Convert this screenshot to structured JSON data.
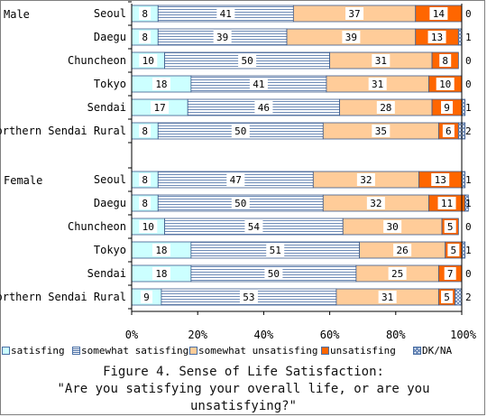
{
  "chart_data": {
    "type": "bar",
    "stacked": "percent",
    "orientation": "horizontal",
    "groups": [
      {
        "label": "Male",
        "categories": [
          "Seoul",
          "Daegu",
          "Chuncheon",
          "Tokyo",
          "Sendai",
          "Northern Sendai Rural"
        ],
        "series": [
          {
            "name": "satisfing",
            "values": [
              8,
              8,
              10,
              18,
              17,
              8
            ]
          },
          {
            "name": "somewhat satisfing",
            "values": [
              41,
              39,
              50,
              41,
              46,
              50
            ]
          },
          {
            "name": "somewhat unsatisfing",
            "values": [
              37,
              39,
              31,
              31,
              28,
              35
            ]
          },
          {
            "name": "unsatisfing",
            "values": [
              14,
              13,
              8,
              10,
              9,
              6
            ]
          },
          {
            "name": "DK/NA",
            "values": [
              0,
              1,
              0,
              0,
              1,
              2
            ]
          }
        ]
      },
      {
        "label": "Female",
        "categories": [
          "Seoul",
          "Daegu",
          "Chuncheon",
          "Tokyo",
          "Sendai",
          "Northern Sendai Rural"
        ],
        "series": [
          {
            "name": "satisfing",
            "values": [
              8,
              8,
              10,
              18,
              18,
              9
            ]
          },
          {
            "name": "somewhat satisfing",
            "values": [
              47,
              50,
              54,
              51,
              50,
              53
            ]
          },
          {
            "name": "somewhat unsatisfing",
            "values": [
              32,
              32,
              30,
              26,
              25,
              31
            ]
          },
          {
            "name": "unsatisfing",
            "values": [
              13,
              11,
              5,
              5,
              7,
              5
            ]
          },
          {
            "name": "DK/NA",
            "values": [
              1,
              1,
              0,
              1,
              0,
              2
            ]
          }
        ]
      }
    ],
    "xticks": [
      "0%",
      "20%",
      "40%",
      "60%",
      "80%",
      "100%"
    ],
    "xlim": [
      0,
      100
    ],
    "grid": false,
    "legend_position": "bottom",
    "colors": {
      "satisfing": "#ccffff",
      "somewhat satisfing": "#ffffff",
      "somewhat unsatisfing": "#ffcc99",
      "unsatisfing": "#ff6600",
      "DK/NA": "#dde8ff"
    }
  },
  "caption": {
    "line1": "Figure 4. Sense of Life Satisfaction:",
    "line2": "\"Are you satisfying your overall life, or are you",
    "line3": "unsatisfying?\""
  }
}
